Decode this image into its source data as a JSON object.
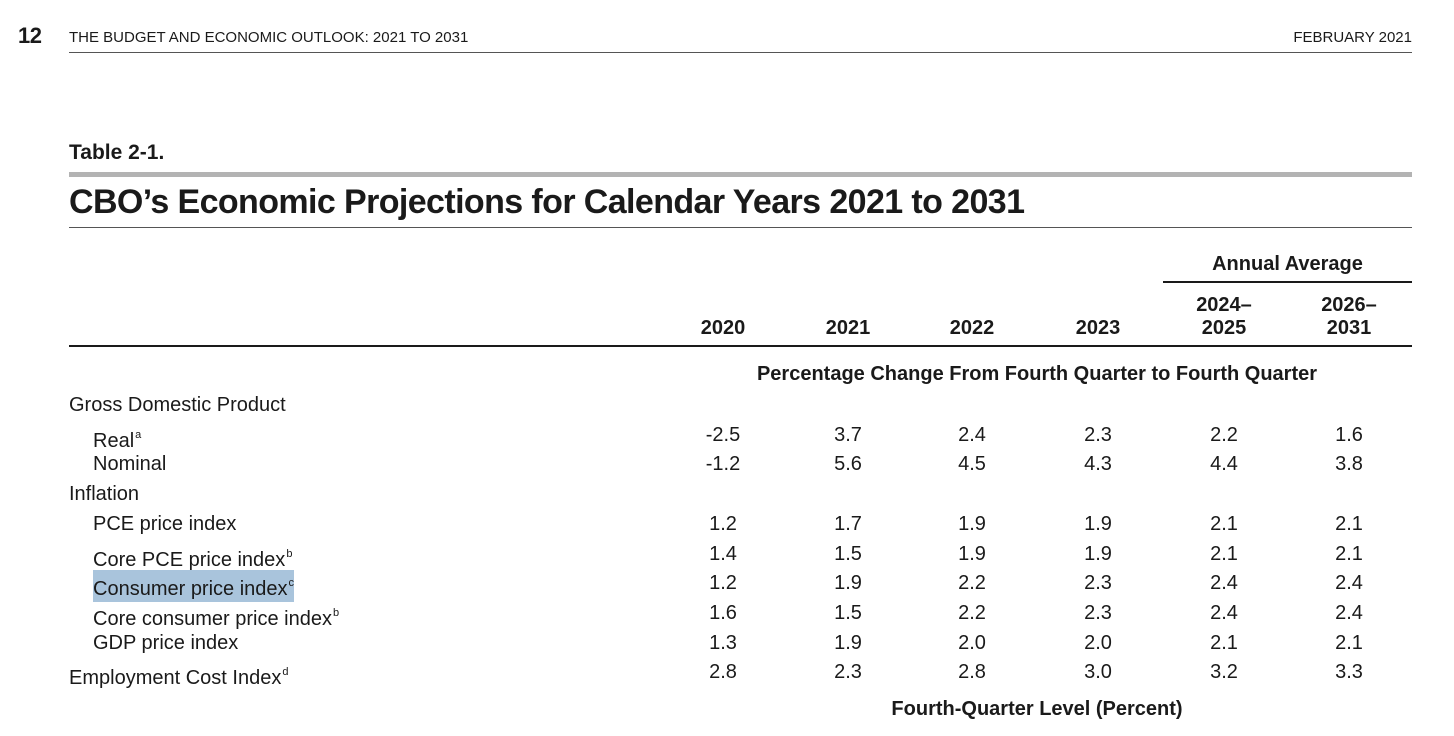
{
  "header": {
    "page_number": "12",
    "running_title": "THE BUDGET AND ECONOMIC OUTLOOK: 2021 TO 2031",
    "date": "FEBRUARY 2021"
  },
  "table": {
    "label": "Table 2-1.",
    "title": "CBO’s Economic Projections for Calendar Years 2021 to 2031",
    "group_header": "Annual Average",
    "columns": [
      {
        "line1": "",
        "line2": "2020"
      },
      {
        "line1": "",
        "line2": "2021"
      },
      {
        "line1": "",
        "line2": "2022"
      },
      {
        "line1": "",
        "line2": "2023"
      },
      {
        "line1": "2024–",
        "line2": "2025"
      },
      {
        "line1": "2026–",
        "line2": "2031"
      }
    ],
    "sections": [
      {
        "heading": "Percentage Change From Fourth Quarter to Fourth Quarter",
        "rows": [
          {
            "label": "Gross Domestic Product",
            "note": "",
            "indent": 0,
            "values": []
          },
          {
            "label": "Real",
            "note": "a",
            "indent": 1,
            "values": [
              "-2.5",
              "3.7",
              "2.4",
              "2.3",
              "2.2",
              "1.6"
            ]
          },
          {
            "label": "Nominal",
            "note": "",
            "indent": 1,
            "values": [
              "-1.2",
              "5.6",
              "4.5",
              "4.3",
              "4.4",
              "3.8"
            ]
          },
          {
            "label": "Inflation",
            "note": "",
            "indent": 0,
            "values": []
          },
          {
            "label": "PCE price index",
            "note": "",
            "indent": 1,
            "values": [
              "1.2",
              "1.7",
              "1.9",
              "1.9",
              "2.1",
              "2.1"
            ]
          },
          {
            "label": "Core PCE price index",
            "note": "b",
            "indent": 1,
            "values": [
              "1.4",
              "1.5",
              "1.9",
              "1.9",
              "2.1",
              "2.1"
            ]
          },
          {
            "label": "Consumer price index",
            "note": "c",
            "indent": 1,
            "selected": true,
            "values": [
              "1.2",
              "1.9",
              "2.2",
              "2.3",
              "2.4",
              "2.4"
            ]
          },
          {
            "label": "Core consumer price index",
            "note": "b",
            "indent": 1,
            "values": [
              "1.6",
              "1.5",
              "2.2",
              "2.3",
              "2.4",
              "2.4"
            ]
          },
          {
            "label": "GDP price index",
            "note": "",
            "indent": 1,
            "values": [
              "1.3",
              "1.9",
              "2.0",
              "2.0",
              "2.1",
              "2.1"
            ]
          },
          {
            "label": "Employment Cost Index",
            "note": "d",
            "indent": 0,
            "values": [
              "2.8",
              "2.3",
              "2.8",
              "3.0",
              "3.2",
              "3.3"
            ]
          }
        ]
      },
      {
        "heading": "Fourth-Quarter Level (Percent)",
        "rows": []
      }
    ]
  },
  "colors": {
    "text": "#1a1a1a",
    "selection": "#a9c4dc",
    "accent_bar": "#b3b3b3"
  }
}
